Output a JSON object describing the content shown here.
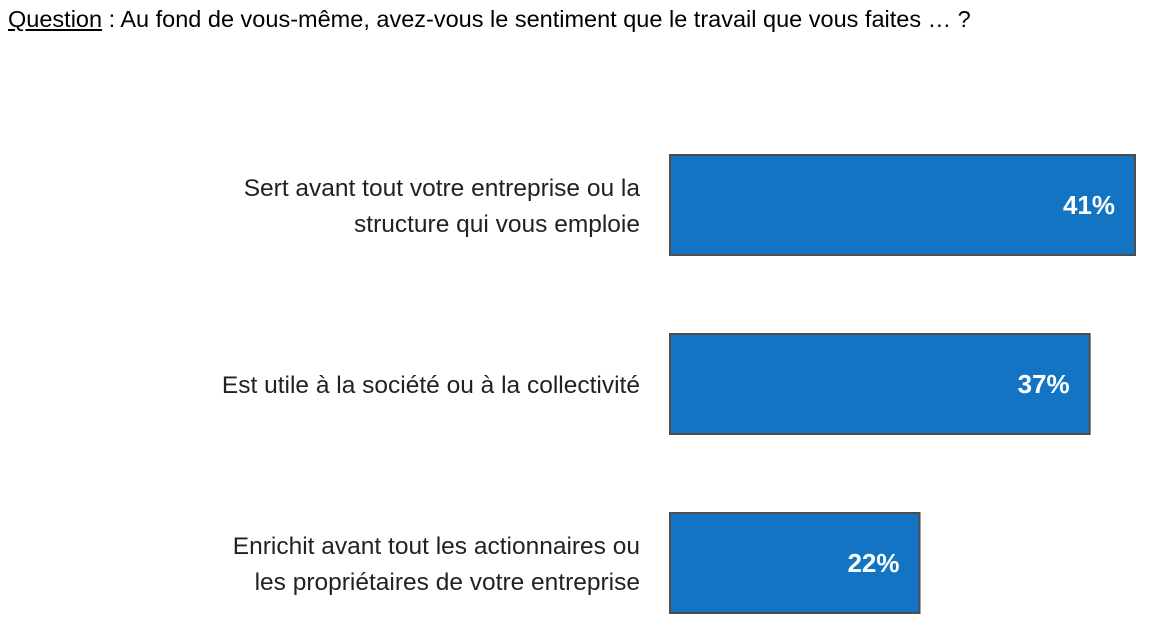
{
  "question": {
    "label": "Question",
    "text": " : Au fond de vous-même, avez-vous le sentiment que le travail que vous faites … ?"
  },
  "colors": {
    "bar_fill": "#1274c2",
    "bar_stroke": "#4d4d4d",
    "value_text": "#ffffff",
    "category_text": "#222222"
  },
  "chart_data": {
    "type": "bar",
    "orientation": "horizontal",
    "categories": [
      [
        "Sert avant tout votre entreprise ou la",
        "structure qui vous emploie"
      ],
      [
        "Est utile à la société ou à la collectivité"
      ],
      [
        "Enrichit avant tout les actionnaires ou",
        "les propriétaires de votre entreprise"
      ]
    ],
    "values": [
      41,
      37,
      22
    ],
    "value_labels": [
      "41%",
      "37%",
      "22%"
    ],
    "unit": "%",
    "grid": false,
    "legend": "none"
  }
}
